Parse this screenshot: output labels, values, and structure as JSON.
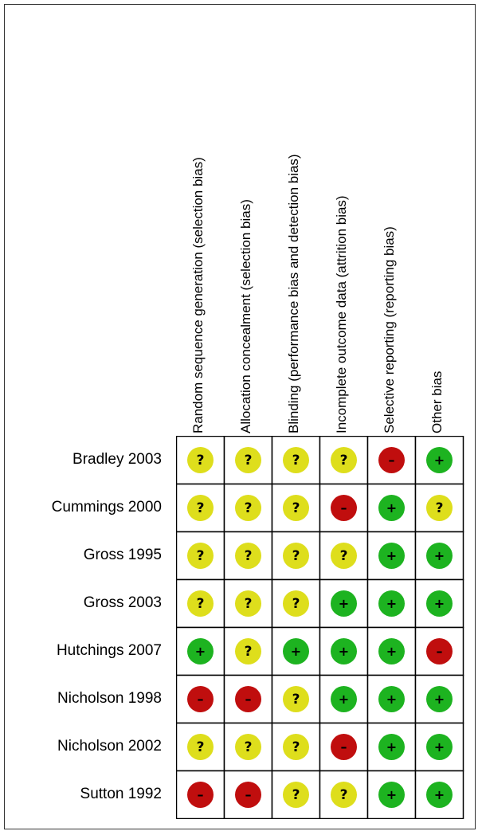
{
  "chart_data": {
    "type": "table",
    "columns": [
      "Random sequence generation (selection bias)",
      "Allocation concealment (selection bias)",
      "Blinding (performance bias and detection bias)",
      "Incomplete outcome data (attrition bias)",
      "Selective reporting (reporting bias)",
      "Other bias"
    ],
    "rows": [
      {
        "study": "Bradley 2003",
        "ratings": [
          "?",
          "?",
          "?",
          "?",
          "-",
          "+"
        ]
      },
      {
        "study": "Cummings 2000",
        "ratings": [
          "?",
          "?",
          "?",
          "-",
          "+",
          "?"
        ]
      },
      {
        "study": "Gross 1995",
        "ratings": [
          "?",
          "?",
          "?",
          "?",
          "+",
          "+"
        ]
      },
      {
        "study": "Gross 2003",
        "ratings": [
          "?",
          "?",
          "?",
          "+",
          "+",
          "+"
        ]
      },
      {
        "study": "Hutchings 2007",
        "ratings": [
          "+",
          "?",
          "+",
          "+",
          "+",
          "-"
        ]
      },
      {
        "study": "Nicholson 1998",
        "ratings": [
          "-",
          "-",
          "?",
          "+",
          "+",
          "+"
        ]
      },
      {
        "study": "Nicholson 2002",
        "ratings": [
          "?",
          "?",
          "?",
          "-",
          "+",
          "+"
        ]
      },
      {
        "study": "Sutton 1992",
        "ratings": [
          "-",
          "-",
          "?",
          "?",
          "+",
          "+"
        ]
      }
    ],
    "symbols": {
      "+": {
        "fill": "#1db320",
        "glyph": "+"
      },
      "?": {
        "fill": "#dede1c",
        "glyph": "?"
      },
      "-": {
        "fill": "#c00e0e",
        "glyph": "–"
      }
    }
  }
}
